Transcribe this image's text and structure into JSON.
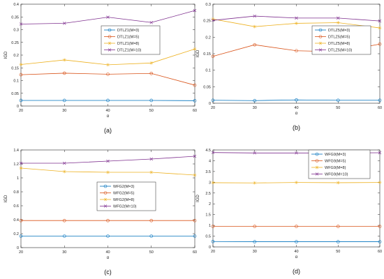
{
  "chart_data": [
    {
      "type": "line",
      "caption": "(a)",
      "xlabel": "α",
      "ylabel": "IGD",
      "x": [
        20,
        30,
        40,
        50,
        60
      ],
      "xticks": [
        20,
        30,
        40,
        50,
        60
      ],
      "xlim": [
        20,
        60
      ],
      "ylim": [
        0,
        0.4
      ],
      "yticks": [
        0,
        0.05,
        0.1,
        0.15,
        0.2,
        0.25,
        0.3,
        0.35,
        0.4
      ],
      "yticklabels": [
        "0",
        "0.05",
        "0.1",
        "0.15",
        "0.2",
        "0.25",
        "0.3",
        "0.35",
        "0.4"
      ],
      "grid": false,
      "legend_position": "center-right",
      "series": [
        {
          "name": "DTLZ1(M=3)",
          "color": "#0072BD",
          "marker": "circle",
          "values": [
            0.022,
            0.022,
            0.022,
            0.022,
            0.021
          ]
        },
        {
          "name": "DTLZ1(M=5)",
          "color": "#D95319",
          "marker": "circle",
          "values": [
            0.123,
            0.129,
            0.125,
            0.128,
            0.082
          ]
        },
        {
          "name": "DTLZ1(M=8)",
          "color": "#EDB120",
          "marker": "star",
          "values": [
            0.163,
            0.181,
            0.162,
            0.169,
            0.224
          ]
        },
        {
          "name": "DTLZ1(M=10)",
          "color": "#7E2F8E",
          "marker": "x",
          "values": [
            0.322,
            0.325,
            0.349,
            0.328,
            0.375
          ]
        }
      ]
    },
    {
      "type": "line",
      "caption": "(b)",
      "xlabel": "α",
      "ylabel": "IGD",
      "x": [
        20,
        30,
        40,
        50,
        60
      ],
      "xticks": [
        20,
        30,
        40,
        50,
        60
      ],
      "xlim": [
        20,
        60
      ],
      "ylim": [
        0,
        0.3
      ],
      "yticks": [
        0,
        0.05,
        0.1,
        0.15,
        0.2,
        0.25,
        0.3
      ],
      "yticklabels": [
        "0",
        "0.05",
        "0.1",
        "0.15",
        "0.2",
        "0.25",
        "0.3"
      ],
      "grid": false,
      "legend_position": "center-right",
      "series": [
        {
          "name": "DTLZ5(M=3)",
          "color": "#0072BD",
          "marker": "circle",
          "values": [
            0.009,
            0.008,
            0.01,
            0.009,
            0.009
          ]
        },
        {
          "name": "DTLZ5(M=5)",
          "color": "#D95319",
          "marker": "circle",
          "values": [
            0.142,
            0.177,
            0.159,
            0.156,
            0.179
          ]
        },
        {
          "name": "DTLZ5(M=8)",
          "color": "#EDB120",
          "marker": "star",
          "values": [
            0.255,
            0.232,
            0.242,
            0.244,
            0.228
          ]
        },
        {
          "name": "DTLZ5(M=10)",
          "color": "#7E2F8E",
          "marker": "x",
          "values": [
            0.251,
            0.264,
            0.258,
            0.258,
            0.249
          ]
        }
      ]
    },
    {
      "type": "line",
      "caption": "(c)",
      "xlabel": "α",
      "ylabel": "IGD",
      "x": [
        20,
        30,
        40,
        50,
        60
      ],
      "xticks": [
        20,
        30,
        40,
        50,
        60
      ],
      "xlim": [
        20,
        60
      ],
      "ylim": [
        0,
        1.4
      ],
      "yticks": [
        0,
        0.2,
        0.4,
        0.6,
        0.8,
        1,
        1.2,
        1.4
      ],
      "yticklabels": [
        "0",
        "0.2",
        "0.4",
        "0.6",
        "0.8",
        "1",
        "1.2",
        "1.4"
      ],
      "grid": false,
      "legend_position": "center-right",
      "series": [
        {
          "name": "WFG2(M=3)",
          "color": "#0072BD",
          "marker": "circle",
          "values": [
            0.165,
            0.165,
            0.165,
            0.165,
            0.165
          ]
        },
        {
          "name": "WFG2(M=5)",
          "color": "#D95319",
          "marker": "circle",
          "values": [
            0.388,
            0.388,
            0.388,
            0.388,
            0.388
          ]
        },
        {
          "name": "WFG2(M=8)",
          "color": "#EDB120",
          "marker": "star",
          "values": [
            1.14,
            1.09,
            1.08,
            1.08,
            1.04
          ]
        },
        {
          "name": "WFG2(M=10)",
          "color": "#7E2F8E",
          "marker": "x",
          "values": [
            1.21,
            1.21,
            1.24,
            1.27,
            1.31
          ]
        }
      ]
    },
    {
      "type": "line",
      "caption": "(d)",
      "xlabel": "α",
      "ylabel": "IGD",
      "x": [
        20,
        30,
        40,
        50,
        60
      ],
      "xticks": [
        20,
        30,
        40,
        50,
        60
      ],
      "xlim": [
        20,
        60
      ],
      "ylim": [
        0,
        4.5
      ],
      "yticks": [
        0,
        0.5,
        1,
        1.5,
        2,
        2.5,
        3,
        3.5,
        4,
        4.5
      ],
      "yticklabels": [
        "0",
        "0.5",
        "1",
        "1.5",
        "2",
        "2.5",
        "3",
        "3.5",
        "4",
        "4.5"
      ],
      "grid": false,
      "legend_position": "top-right",
      "series": [
        {
          "name": "WFG9(M=3)",
          "color": "#0072BD",
          "marker": "circle",
          "values": [
            0.25,
            0.24,
            0.24,
            0.24,
            0.24
          ]
        },
        {
          "name": "WFG9(M=5)",
          "color": "#D95319",
          "marker": "circle",
          "values": [
            0.95,
            0.95,
            0.95,
            0.95,
            0.95
          ]
        },
        {
          "name": "WFG9(M=8)",
          "color": "#EDB120",
          "marker": "star",
          "values": [
            2.98,
            2.97,
            2.99,
            2.98,
            2.99
          ]
        },
        {
          "name": "WFG9(M=10)",
          "color": "#7E2F8E",
          "marker": "x",
          "values": [
            4.38,
            4.36,
            4.36,
            4.36,
            4.37
          ]
        }
      ]
    }
  ]
}
